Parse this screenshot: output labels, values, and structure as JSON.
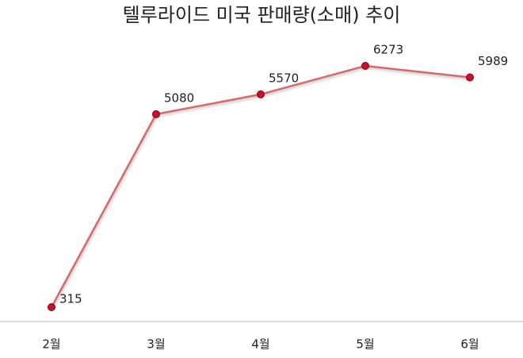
{
  "chart_data": {
    "type": "line",
    "title": "텔루라이드 미국 판매량(소매) 추이",
    "categories": [
      "2월",
      "3월",
      "4월",
      "5월",
      "6월"
    ],
    "values": [
      315,
      5080,
      5570,
      6273,
      5989
    ],
    "color": "#d46a6a",
    "marker_color": "#c8102e"
  }
}
